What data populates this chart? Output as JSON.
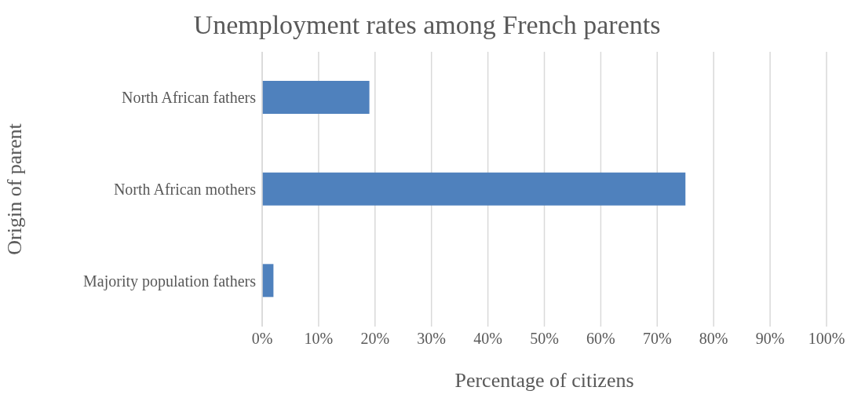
{
  "chart_data": {
    "type": "bar",
    "orientation": "horizontal",
    "title": "Unemployment rates among French parents",
    "xlabel": "Percentage of citizens",
    "ylabel": "Origin of parent",
    "categories": [
      "North African fathers",
      "North African mothers",
      "Majority population fathers"
    ],
    "values": [
      19,
      75,
      2
    ],
    "color": "#4f81bd",
    "xlim": [
      0,
      100
    ],
    "xticks": [
      {
        "value": 0,
        "label": "0%"
      },
      {
        "value": 10,
        "label": "10%"
      },
      {
        "value": 20,
        "label": "20%"
      },
      {
        "value": 30,
        "label": "30%"
      },
      {
        "value": 40,
        "label": "40%"
      },
      {
        "value": 50,
        "label": "50%"
      },
      {
        "value": 60,
        "label": "60%"
      },
      {
        "value": 70,
        "label": "70%"
      },
      {
        "value": 80,
        "label": "80%"
      },
      {
        "value": 90,
        "label": "90%"
      },
      {
        "value": 100,
        "label": "100%"
      }
    ],
    "grid": "x"
  }
}
